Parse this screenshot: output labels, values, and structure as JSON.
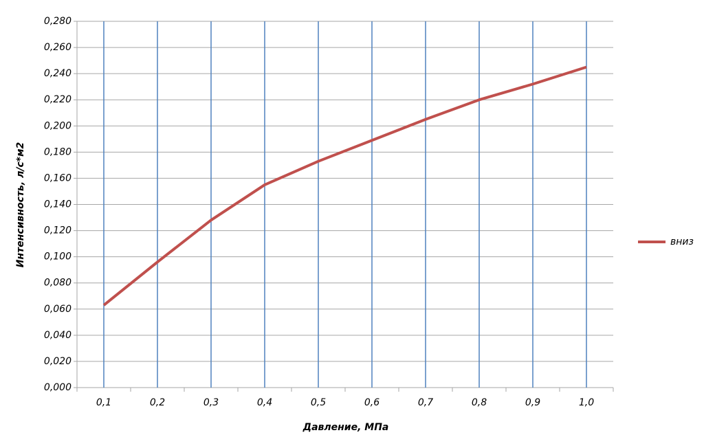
{
  "chart_data": {
    "type": "line",
    "x_label": "Давление, МПа",
    "y_label": "Интенсивность, л/с*м2",
    "categories": [
      "0,1",
      "0,2",
      "0,3",
      "0,4",
      "0,5",
      "0,6",
      "0,7",
      "0,8",
      "0,9",
      "1,0"
    ],
    "series": [
      {
        "name": "вниз",
        "color": "#c0504d",
        "values": [
          0.063,
          0.096,
          0.128,
          0.155,
          0.173,
          0.189,
          0.205,
          0.22,
          0.232,
          0.245
        ]
      }
    ],
    "ylim": [
      0,
      0.28
    ],
    "yticks": [
      {
        "value": 0,
        "label": "0,000"
      },
      {
        "value": 0.02,
        "label": "0,020"
      },
      {
        "value": 0.04,
        "label": "0,040"
      },
      {
        "value": 0.06,
        "label": "0,060"
      },
      {
        "value": 0.08,
        "label": "0,080"
      },
      {
        "value": 0.1,
        "label": "0,100"
      },
      {
        "value": 0.12,
        "label": "0,120"
      },
      {
        "value": 0.14,
        "label": "0,140"
      },
      {
        "value": 0.16,
        "label": "0,160"
      },
      {
        "value": 0.18,
        "label": "0,180"
      },
      {
        "value": 0.2,
        "label": "0,200"
      },
      {
        "value": 0.22,
        "label": "0,220"
      },
      {
        "value": 0.24,
        "label": "0,240"
      },
      {
        "value": 0.26,
        "label": "0,260"
      },
      {
        "value": 0.28,
        "label": "0,280"
      }
    ],
    "grid": true,
    "category_grid_color": "#4f81bd",
    "legend": "right"
  }
}
